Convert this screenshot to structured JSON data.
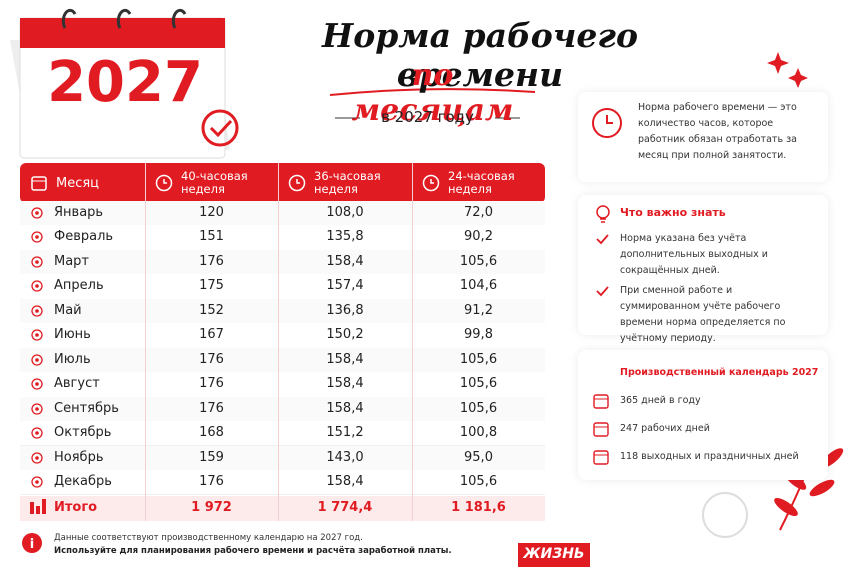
{
  "calendar": {
    "year": "2027"
  },
  "header": {
    "title": "Норма рабочего времени",
    "subtitle": "по месяцам",
    "year_line": "в 2027 году"
  },
  "table": {
    "columns": [
      "Месяц",
      "40-часовая неделя",
      "36-часовая неделя",
      "24-часовая неделя"
    ],
    "rows": [
      [
        "Январь",
        "120",
        "108,0",
        "72,0"
      ],
      [
        "Февраль",
        "151",
        "135,8",
        "90,2"
      ],
      [
        "Март",
        "176",
        "158,4",
        "105,6"
      ],
      [
        "Апрель",
        "175",
        "157,4",
        "104,6"
      ],
      [
        "Май",
        "152",
        "136,8",
        "91,2"
      ],
      [
        "Июнь",
        "167",
        "150,2",
        "99,8"
      ],
      [
        "Июль",
        "176",
        "158,4",
        "105,6"
      ],
      [
        "Август",
        "176",
        "158,4",
        "105,6"
      ],
      [
        "Сентябрь",
        "176",
        "158,4",
        "105,6"
      ],
      [
        "Октябрь",
        "168",
        "151,2",
        "100,8"
      ],
      [
        "Ноябрь",
        "159",
        "143,0",
        "95,0"
      ],
      [
        "Декабрь",
        "176",
        "158,4",
        "105,6"
      ]
    ],
    "total": [
      "Итого",
      "1 972",
      "1 774,4",
      "1 181,6"
    ]
  },
  "definition": "Норма рабочего времени — это количество часов, которое работник обязан отработать за месяц при полной занятости.",
  "important": {
    "title": "Что важно знать",
    "items": [
      "Норма указана без учёта дополнительных выходных и сокращённых дней.",
      "При сменной работе и суммированном учёте рабочего времени норма определяется по учётному периоду."
    ]
  },
  "production_calendar": {
    "title": "Производственный календарь 2027",
    "items": [
      "365 дней в году",
      "247 рабочих дней",
      "118 выходных и праздничных дней"
    ]
  },
  "footnote": [
    "Данные соответствуют производственному календарю на 2027 год.",
    "Используйте для планирования рабочего времени и расчёта заработной платы."
  ],
  "brand": "ЖИЗНЬ"
}
